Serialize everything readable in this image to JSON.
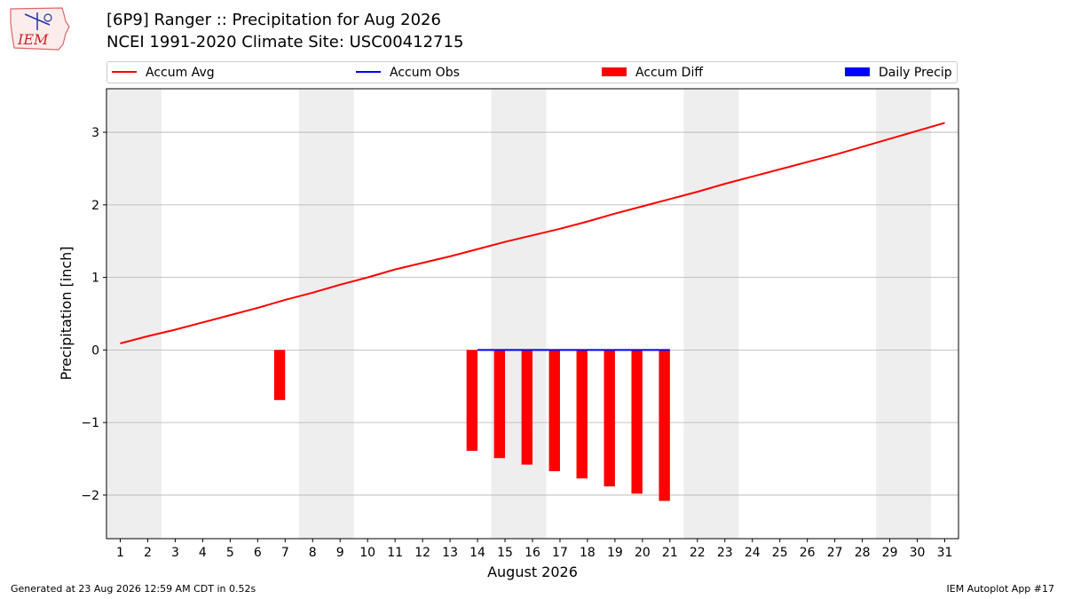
{
  "header": {
    "title_line1": "[6P9] Ranger :: Precipitation for Aug 2026",
    "title_line2": "NCEI 1991-2020 Climate Site: USC00412715"
  },
  "logo": {
    "text": "IEM"
  },
  "footer": {
    "left": "Generated at 23 Aug 2026 12:59 AM CDT in 0.52s",
    "right": "IEM Autoplot App #17"
  },
  "legend": {
    "accum_avg": "Accum Avg",
    "accum_obs": "Accum Obs",
    "accum_diff": "Accum Diff",
    "daily_precip": "Daily Precip"
  },
  "colors": {
    "avg": "#ff0000",
    "obs": "#0000ff",
    "diff": "#ff0000",
    "daily": "#0000ff",
    "weekend_shade": "#eeeeee",
    "grid": "#b0b0b0"
  },
  "chart_data": {
    "type": "line",
    "xlabel": "August 2026",
    "ylabel": "Precipitation [inch]",
    "xlim": [
      0.5,
      31.5
    ],
    "ylim": [
      -2.6,
      3.6
    ],
    "x_ticks": [
      1,
      2,
      3,
      4,
      5,
      6,
      7,
      8,
      9,
      10,
      11,
      12,
      13,
      14,
      15,
      16,
      17,
      18,
      19,
      20,
      21,
      22,
      23,
      24,
      25,
      26,
      27,
      28,
      29,
      30,
      31
    ],
    "y_ticks": [
      -2,
      -1,
      0,
      1,
      2,
      3
    ],
    "y_tick_labels": [
      "−2",
      "−1",
      "0",
      "1",
      "2",
      "3"
    ],
    "grid": "horizontal",
    "legend_position": "top",
    "weekend_shading": [
      [
        1,
        2
      ],
      [
        8,
        9
      ],
      [
        15,
        16
      ],
      [
        22,
        23
      ],
      [
        29,
        30
      ]
    ],
    "series": [
      {
        "name": "Accum Avg",
        "type": "line",
        "x": [
          1,
          2,
          3,
          4,
          5,
          6,
          7,
          8,
          9,
          10,
          11,
          12,
          13,
          14,
          15,
          16,
          17,
          18,
          19,
          20,
          21,
          22,
          23,
          24,
          25,
          26,
          27,
          28,
          29,
          30,
          31
        ],
        "values": [
          0.09,
          0.19,
          0.28,
          0.38,
          0.48,
          0.58,
          0.69,
          0.79,
          0.9,
          1.0,
          1.11,
          1.2,
          1.29,
          1.39,
          1.49,
          1.58,
          1.67,
          1.77,
          1.88,
          1.98,
          2.08,
          2.18,
          2.29,
          2.39,
          2.49,
          2.59,
          2.69,
          2.8,
          2.91,
          3.02,
          3.13
        ]
      },
      {
        "name": "Accum Obs",
        "type": "line",
        "x": [
          14,
          15,
          16,
          17,
          18,
          19,
          20,
          21
        ],
        "values": [
          0,
          0,
          0,
          0,
          0,
          0,
          0,
          0
        ]
      },
      {
        "name": "Accum Diff",
        "type": "bar",
        "x": [
          7,
          14,
          15,
          16,
          17,
          18,
          19,
          20,
          21
        ],
        "values": [
          -0.69,
          -1.39,
          -1.49,
          -1.58,
          -1.67,
          -1.77,
          -1.88,
          -1.98,
          -2.08
        ]
      },
      {
        "name": "Daily Precip",
        "type": "bar",
        "x": [],
        "values": []
      }
    ]
  }
}
